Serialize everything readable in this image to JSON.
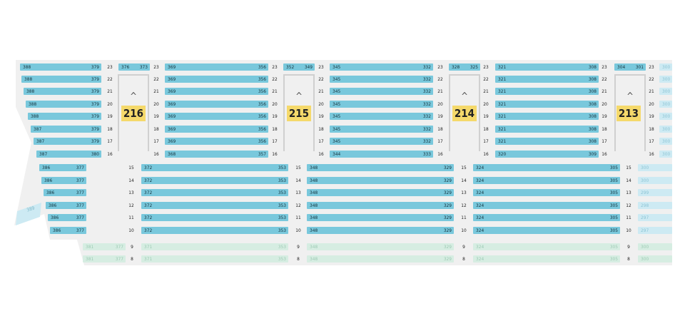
{
  "colors": {
    "seat": "#79c8dc",
    "seat_faded": "#cdeaf3",
    "seat_green": "#d6ede2",
    "badge": "#f5d96b",
    "arena": "#f0f0f0"
  },
  "sections": [
    {
      "id": "216",
      "label": "216"
    },
    {
      "id": "215",
      "label": "215"
    },
    {
      "id": "214",
      "label": "214"
    },
    {
      "id": "213",
      "label": "213"
    }
  ],
  "upper_rows": [
    {
      "row": "23",
      "cells": [
        [
          "388",
          "379"
        ],
        [
          "376",
          "373"
        ],
        [
          "369",
          "356"
        ],
        [
          "352",
          "349"
        ],
        [
          "345",
          "332"
        ],
        [
          "328",
          "325"
        ],
        [
          "321",
          "308"
        ],
        [
          "304",
          "301"
        ],
        [
          "300",
          ""
        ]
      ]
    },
    {
      "row": "22",
      "cells": [
        [
          "388",
          "379"
        ],
        [
          "369",
          "356"
        ],
        [
          "345",
          "332"
        ],
        [
          "321",
          "308"
        ],
        [
          "300",
          ""
        ]
      ]
    },
    {
      "row": "21",
      "cells": [
        [
          "388",
          "379"
        ],
        [
          "369",
          "356"
        ],
        [
          "345",
          "332"
        ],
        [
          "321",
          "308"
        ],
        [
          "300",
          ""
        ]
      ]
    },
    {
      "row": "20",
      "cells": [
        [
          "388",
          "379"
        ],
        [
          "369",
          "356"
        ],
        [
          "345",
          "332"
        ],
        [
          "321",
          "308"
        ],
        [
          "300",
          ""
        ]
      ]
    },
    {
      "row": "19",
      "cells": [
        [
          "388",
          "379"
        ],
        [
          "369",
          "356"
        ],
        [
          "345",
          "332"
        ],
        [
          "321",
          "308"
        ],
        [
          "300",
          ""
        ]
      ]
    },
    {
      "row": "18",
      "cells": [
        [
          "387",
          "379"
        ],
        [
          "369",
          "356"
        ],
        [
          "345",
          "332"
        ],
        [
          "321",
          "308"
        ],
        [
          "300",
          ""
        ]
      ]
    },
    {
      "row": "17",
      "cells": [
        [
          "387",
          "379"
        ],
        [
          "369",
          "356"
        ],
        [
          "345",
          "332"
        ],
        [
          "321",
          "308"
        ],
        [
          "300",
          ""
        ]
      ]
    },
    {
      "row": "16",
      "cells": [
        [
          "387",
          "380"
        ],
        [
          "368",
          "357"
        ],
        [
          "344",
          "333"
        ],
        [
          "320",
          "309"
        ],
        [
          "300",
          ""
        ]
      ]
    }
  ],
  "lower_rows": [
    {
      "row": "15",
      "cells": [
        [
          "386",
          "377"
        ],
        [
          "372",
          "353"
        ],
        [
          "348",
          "329"
        ],
        [
          "324",
          "305"
        ],
        [
          "300",
          ""
        ]
      ]
    },
    {
      "row": "14",
      "cells": [
        [
          "386",
          "377"
        ],
        [
          "372",
          "353"
        ],
        [
          "348",
          "329"
        ],
        [
          "324",
          "305"
        ],
        [
          "300",
          ""
        ]
      ]
    },
    {
      "row": "13",
      "cells": [
        [
          "386",
          "377"
        ],
        [
          "372",
          "353"
        ],
        [
          "348",
          "329"
        ],
        [
          "324",
          "305"
        ],
        [
          "299",
          ""
        ]
      ]
    },
    {
      "row": "12",
      "cells": [
        [
          "386",
          "377"
        ],
        [
          "372",
          "353"
        ],
        [
          "348",
          "329"
        ],
        [
          "324",
          "305"
        ],
        [
          "298",
          ""
        ]
      ]
    },
    {
      "row": "11",
      "cells": [
        [
          "386",
          "377"
        ],
        [
          "372",
          "353"
        ],
        [
          "348",
          "329"
        ],
        [
          "324",
          "305"
        ],
        [
          "297",
          ""
        ]
      ]
    },
    {
      "row": "10",
      "cells": [
        [
          "386",
          "377"
        ],
        [
          "372",
          "353"
        ],
        [
          "348",
          "329"
        ],
        [
          "324",
          "305"
        ],
        [
          "297",
          ""
        ]
      ]
    }
  ],
  "bottom_rows": [
    {
      "row": "9",
      "cells": [
        [
          "381",
          "377"
        ],
        [
          "371",
          "353"
        ],
        [
          "348",
          "329"
        ],
        [
          "324",
          "305"
        ],
        [
          "300",
          ""
        ]
      ]
    },
    {
      "row": "8",
      "cells": [
        [
          "381",
          "377"
        ],
        [
          "371",
          "353"
        ],
        [
          "348",
          "329"
        ],
        [
          "324",
          "305"
        ],
        [
          "300",
          ""
        ]
      ]
    }
  ],
  "side_label": "389"
}
